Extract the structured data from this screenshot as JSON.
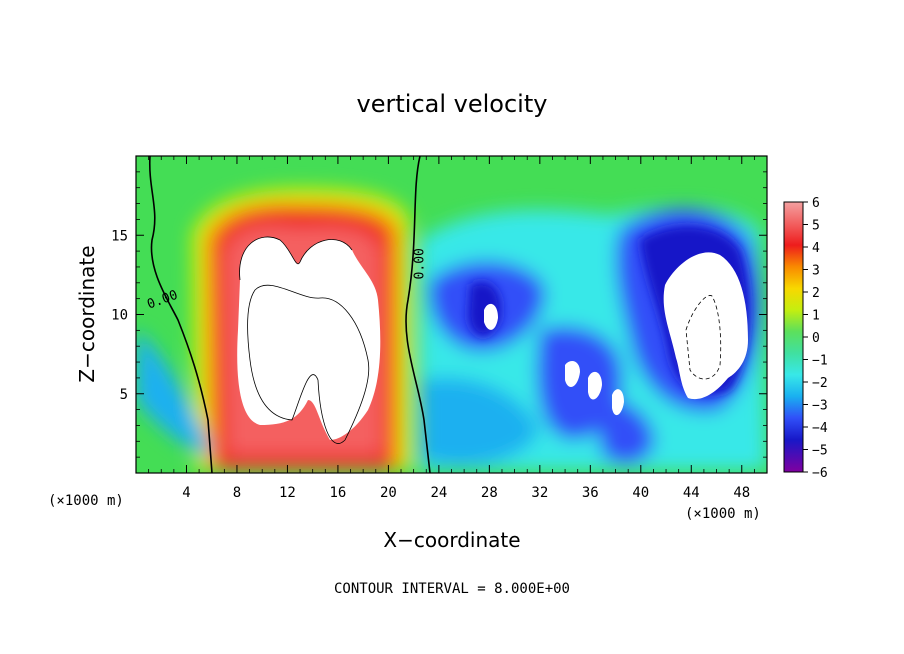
{
  "chart_data": {
    "type": "heatmap",
    "title": "vertical velocity",
    "xlabel": "X−coordinate",
    "ylabel": "Z−coordinate",
    "x_unit_left": "(×1000 m)",
    "x_unit_right": "(×1000 m)",
    "xlim": [
      0,
      50
    ],
    "ylim": [
      0,
      20
    ],
    "x_ticks": [
      4,
      8,
      12,
      16,
      20,
      24,
      28,
      32,
      36,
      40,
      44,
      48
    ],
    "y_ticks": [
      5,
      10,
      15
    ],
    "colorbar": {
      "min": -6,
      "max": 6,
      "ticks": [
        6,
        5,
        4,
        3,
        2,
        1,
        0,
        -1,
        -2,
        -3,
        -4,
        -5,
        -6
      ],
      "tick_labels": [
        "6",
        "5",
        "4",
        "3",
        "2",
        "1",
        "0",
        "−1",
        "−2",
        "−3",
        "−4",
        "−5",
        "−6"
      ]
    },
    "contour_labels": [
      {
        "text": "0.00",
        "x": 2.2,
        "y": 10.7
      },
      {
        "text": "0.00",
        "x": 22.8,
        "y": 13.2
      }
    ],
    "footer": "CONTOUR INTERVAL = 8.000E+00"
  }
}
